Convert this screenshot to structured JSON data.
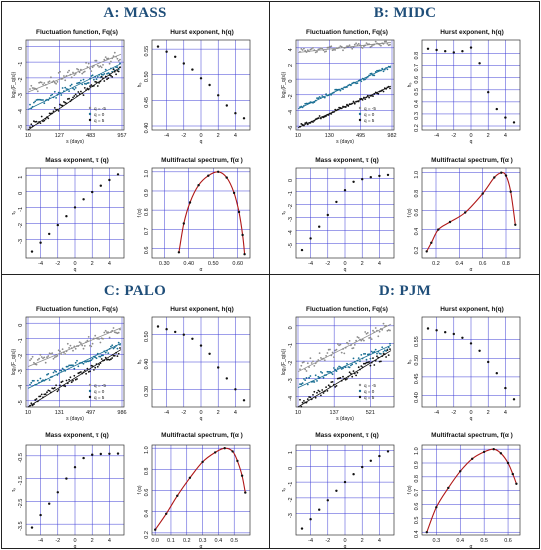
{
  "colors": {
    "title": "#1f4e79",
    "grid": "#3d3dd6",
    "q_neg5": "#8c8c8c",
    "q_0": "#1a6f93",
    "q_5": "#111111",
    "spectrum_curve": "#b01818",
    "points": "#111111"
  },
  "subplot_titles": {
    "fluctuation": "Fluctuation function, Fq(s)",
    "hurst": "Hurst exponent, h(q)",
    "mass": "Mass exponent, τ (q)",
    "spectrum": "Multifractal spectrum, f(α )"
  },
  "axis_labels": {
    "fluct_x": "s (days)",
    "fluct_y": "log₂(F_q(s))",
    "hurst_x": "q",
    "hurst_y": "hₔ",
    "mass_x": "q",
    "mass_y": "τₔ",
    "spectrum_x": "α",
    "spectrum_y": "f (α)"
  },
  "legend": [
    "q = -5",
    "q = 0",
    "q = 5"
  ],
  "chart_data": [
    {
      "panel": "A",
      "title": "A: MASS",
      "fluctuation": {
        "type": "scatter",
        "xticks": [
          "10",
          "127",
          "483",
          "957"
        ],
        "yticks": [
          "-5",
          "-4",
          "-3",
          "-2",
          "-1",
          "0"
        ],
        "ylim": [
          -5.3,
          0.4
        ],
        "series": [
          {
            "name": "q = -5",
            "start": -2.7,
            "end": -0.6
          },
          {
            "name": "q = 0",
            "start": -3.8,
            "end": -1.2
          },
          {
            "name": "q = 5",
            "start": -5.1,
            "end": -1.4
          }
        ]
      },
      "hurst": {
        "type": "scatter",
        "q": [
          -5,
          -4,
          -3,
          -2,
          -1,
          0,
          1,
          2,
          3,
          4,
          5
        ],
        "h": [
          0.555,
          0.545,
          0.535,
          0.522,
          0.51,
          0.493,
          0.48,
          0.46,
          0.44,
          0.425,
          0.415
        ],
        "xticks": [
          "-4",
          "-2",
          "0",
          "2",
          "4"
        ],
        "yticks": [
          "0.40",
          "0.45",
          "0.50",
          "0.55"
        ],
        "ylim": [
          0.4,
          0.56
        ]
      },
      "mass": {
        "type": "scatter",
        "q": [
          -5,
          -4,
          -3,
          -2,
          -1,
          0,
          1,
          2,
          3,
          4,
          5
        ],
        "tau": [
          -3.75,
          -3.2,
          -2.65,
          -2.1,
          -1.55,
          -1.0,
          -0.5,
          -0.05,
          0.35,
          0.7,
          1.05
        ],
        "xticks": [
          "-4",
          "-2",
          "0",
          "2",
          "4"
        ],
        "yticks": [
          "-3",
          "-2",
          "-1",
          "0",
          "1"
        ],
        "ylim": [
          -3.9,
          1.2
        ]
      },
      "spectrum": {
        "type": "line",
        "alpha": [
          0.36,
          0.38,
          0.405,
          0.44,
          0.48,
          0.52,
          0.555,
          0.585,
          0.605,
          0.62,
          0.628
        ],
        "f": [
          0.58,
          0.73,
          0.84,
          0.93,
          0.98,
          1.0,
          0.97,
          0.89,
          0.79,
          0.67,
          0.57
        ],
        "xticks": [
          "0.30",
          "0.40",
          "0.50",
          "0.60"
        ],
        "yticks": [
          "0.6",
          "0.7",
          "0.8",
          "0.9",
          "1.0"
        ],
        "xlim": [
          0.25,
          0.65
        ],
        "ylim": [
          0.55,
          1.02
        ]
      }
    },
    {
      "panel": "B",
      "title": "B: MIDC",
      "fluctuation": {
        "type": "scatter",
        "xticks": [
          "10",
          "130",
          "495",
          "982"
        ],
        "yticks": [
          "-6",
          "-4",
          "-2",
          "0",
          "2",
          "4"
        ],
        "ylim": [
          -6.5,
          5.0
        ],
        "series": [
          {
            "name": "q = -5",
            "start": 3.6,
            "end": 4.6
          },
          {
            "name": "q = 0",
            "start": -3.6,
            "end": 1.6
          },
          {
            "name": "q = 5",
            "start": -6.0,
            "end": -1.0
          }
        ]
      },
      "hurst": {
        "type": "scatter",
        "q": [
          -5,
          -4,
          -3,
          -2,
          -1,
          0,
          1,
          2,
          3,
          4,
          5
        ],
        "h": [
          0.84,
          0.83,
          0.82,
          0.81,
          0.82,
          0.85,
          0.72,
          0.48,
          0.34,
          0.27,
          0.23
        ],
        "xticks": [
          "-4",
          "-2",
          "0",
          "2",
          "4"
        ],
        "yticks": [
          "0.2",
          "0.3",
          "0.4",
          "0.5",
          "0.6",
          "0.7",
          "0.8"
        ],
        "ylim": [
          0.2,
          0.88
        ]
      },
      "mass": {
        "type": "scatter",
        "q": [
          -5,
          -4,
          -3,
          -2,
          -1,
          0,
          1,
          2,
          3,
          4,
          5
        ],
        "tau": [
          -5.5,
          -4.6,
          -3.7,
          -2.8,
          -1.8,
          -0.9,
          -0.25,
          -0.05,
          0.1,
          0.2,
          0.28
        ],
        "xticks": [
          "-4",
          "-2",
          "0",
          "2",
          "4"
        ],
        "yticks": [
          "-5",
          "-4",
          "-3",
          "-2",
          "-1",
          "0"
        ],
        "ylim": [
          -5.8,
          0.5
        ]
      },
      "spectrum": {
        "type": "line",
        "alpha": [
          0.12,
          0.16,
          0.22,
          0.32,
          0.45,
          0.6,
          0.7,
          0.76,
          0.8,
          0.84,
          0.88
        ],
        "f": [
          0.17,
          0.26,
          0.4,
          0.48,
          0.58,
          0.78,
          0.95,
          1.0,
          0.97,
          0.8,
          0.45
        ],
        "xticks": [
          "0.2",
          "0.4",
          "0.6",
          "0.8"
        ],
        "yticks": [
          "0.2",
          "0.4",
          "0.6",
          "0.8",
          "1.0"
        ],
        "xlim": [
          0.08,
          0.92
        ],
        "ylim": [
          0.1,
          1.05
        ]
      }
    },
    {
      "panel": "C",
      "title": "C: PALO",
      "fluctuation": {
        "type": "scatter",
        "xticks": [
          "10",
          "131",
          "497",
          "986"
        ],
        "yticks": [
          "-5",
          "-4",
          "-3",
          "-2",
          "-1",
          "0"
        ],
        "ylim": [
          -5.4,
          0.4
        ],
        "series": [
          {
            "name": "q = -5",
            "start": -2.6,
            "end": -0.4
          },
          {
            "name": "q = 0",
            "start": -4.0,
            "end": -1.4
          },
          {
            "name": "q = 5",
            "start": -5.2,
            "end": -1.8
          }
        ]
      },
      "hurst": {
        "type": "scatter",
        "q": [
          -5,
          -4,
          -3,
          -2,
          -1,
          0,
          1,
          2,
          3,
          4,
          5
        ],
        "h": [
          0.53,
          0.52,
          0.51,
          0.5,
          0.485,
          0.46,
          0.43,
          0.38,
          0.34,
          0.3,
          0.26
        ],
        "xticks": [
          "-4",
          "-2",
          "0",
          "2",
          "4"
        ],
        "yticks": [
          "0.30",
          "0.40",
          "0.50"
        ],
        "ylim": [
          0.25,
          0.55
        ]
      },
      "mass": {
        "type": "scatter",
        "q": [
          -5,
          -4,
          -3,
          -2,
          -1,
          0,
          1,
          2,
          3,
          4,
          5
        ],
        "tau": [
          -3.65,
          -3.1,
          -2.6,
          -2.1,
          -1.5,
          -1.0,
          -0.6,
          -0.45,
          -0.42,
          -0.41,
          -0.4
        ],
        "xticks": [
          "-4",
          "-2",
          "0",
          "2",
          "4"
        ],
        "yticks": [
          "-3.5",
          "-2.5",
          "-1.5",
          "-0.5"
        ],
        "ylim": [
          -3.8,
          -0.2
        ]
      },
      "spectrum": {
        "type": "line",
        "alpha": [
          0.0,
          0.07,
          0.14,
          0.22,
          0.3,
          0.38,
          0.44,
          0.49,
          0.52,
          0.55,
          0.57
        ],
        "f": [
          0.23,
          0.38,
          0.55,
          0.72,
          0.87,
          0.96,
          1.0,
          0.97,
          0.88,
          0.74,
          0.58
        ],
        "xticks": [
          "0.0",
          "0.1",
          "0.2",
          "0.3",
          "0.4",
          "0.5"
        ],
        "yticks": [
          "0.2",
          "0.4",
          "0.6",
          "0.8",
          "1.0"
        ],
        "xlim": [
          -0.02,
          0.6
        ],
        "ylim": [
          0.18,
          1.03
        ]
      }
    },
    {
      "panel": "D",
      "title": "D: PJM",
      "fluctuation": {
        "type": "scatter",
        "xticks": [
          "10",
          "137",
          "521"
        ],
        "yticks": [
          "-4",
          "-3",
          "-2",
          "-1",
          "0"
        ],
        "ylim": [
          -4.6,
          0.5
        ],
        "series": [
          {
            "name": "q = -5",
            "start": -2.4,
            "end": 0.0
          },
          {
            "name": "q = 0",
            "start": -3.3,
            "end": -1.2
          },
          {
            "name": "q = 5",
            "start": -4.4,
            "end": -1.5
          }
        ]
      },
      "hurst": {
        "type": "scatter",
        "q": [
          -5,
          -4,
          -3,
          -2,
          -1,
          0,
          1,
          2,
          3,
          4,
          5
        ],
        "h": [
          0.58,
          0.575,
          0.57,
          0.565,
          0.555,
          0.54,
          0.52,
          0.49,
          0.46,
          0.42,
          0.39
        ],
        "xticks": [
          "-4",
          "-2",
          "0",
          "2",
          "4"
        ],
        "yticks": [
          "0.40",
          "0.45",
          "0.50",
          "0.55"
        ],
        "ylim": [
          0.38,
          0.6
        ]
      },
      "mass": {
        "type": "scatter",
        "q": [
          -5,
          -4,
          -3,
          -2,
          -1,
          0,
          1,
          2,
          3,
          4,
          5
        ],
        "tau": [
          -3.95,
          -3.35,
          -2.75,
          -2.15,
          -1.55,
          -1.0,
          -0.5,
          -0.05,
          0.35,
          0.65,
          0.95
        ],
        "xticks": [
          "-4",
          "-2",
          "0",
          "2",
          "4"
        ],
        "yticks": [
          "-3",
          "-2",
          "-1",
          "0",
          "1"
        ],
        "ylim": [
          -4.1,
          1.1
        ]
      },
      "spectrum": {
        "type": "line",
        "alpha": [
          0.26,
          0.3,
          0.35,
          0.4,
          0.45,
          0.5,
          0.54,
          0.57,
          0.6,
          0.62,
          0.635
        ],
        "f": [
          0.4,
          0.58,
          0.72,
          0.84,
          0.93,
          0.98,
          1.0,
          0.97,
          0.9,
          0.82,
          0.75
        ],
        "xticks": [
          "0.3",
          "0.4",
          "0.5",
          "0.6"
        ],
        "yticks": [
          "0.4",
          "0.5",
          "0.6",
          "0.7",
          "0.8",
          "0.9",
          "1.0"
        ],
        "xlim": [
          0.24,
          0.65
        ],
        "ylim": [
          0.38,
          1.03
        ]
      }
    }
  ]
}
